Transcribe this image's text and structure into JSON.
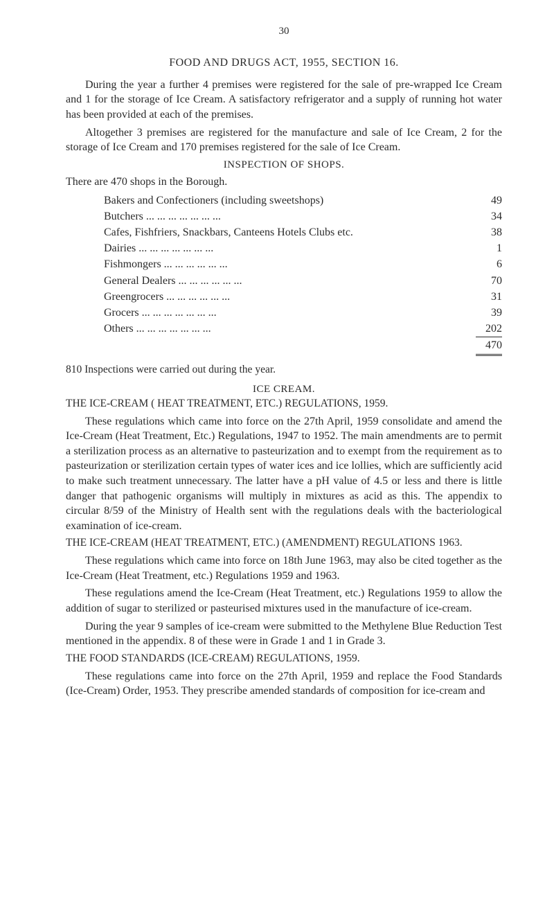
{
  "pageNumber": "30",
  "mainHeading": "FOOD AND DRUGS ACT, 1955, SECTION 16.",
  "para1": "During the year a further 4 premises were registered for the sale of pre-wrapped Ice Cream and 1 for the storage of Ice Cream. A satisfactory refrigerator and a supply of running hot water has been provided at each of the premises.",
  "para2": "Altogether 3 premises are registered for the manufacture and sale of Ice Cream, 2 for the storage of Ice Cream and 170 premises registered for the sale of Ice Cream.",
  "inspectionHeading": "INSPECTION OF SHOPS.",
  "inspectionIntro": "There are 470 shops in the Borough.",
  "shops": [
    {
      "label": "Bakers and Confectioners (including sweetshops)",
      "dots": "   ...",
      "val": "49"
    },
    {
      "label": "Butchers   ...      ...      ...      ...      ...      ...      ...",
      "dots": "",
      "val": "34"
    },
    {
      "label": "Cafes, Fishfriers, Snackbars, Canteens Hotels Clubs etc.",
      "dots": "",
      "val": "38"
    },
    {
      "label": "Dairies      ...      ...      ...      ...      ...      ...      ...",
      "dots": "",
      "val": "1"
    },
    {
      "label": "Fishmongers      ...      ...      ...      ...      ...      ...",
      "dots": "",
      "val": "6"
    },
    {
      "label": "General Dealers  ...      ...      ...      ...      ...      ...",
      "dots": "",
      "val": "70"
    },
    {
      "label": "Greengrocers      ...      ...      ...      ...      ...      ...",
      "dots": "",
      "val": "31"
    },
    {
      "label": "Grocers     ...      ...      ...      ...      ...      ...      ...",
      "dots": "",
      "val": "39"
    },
    {
      "label": "Others      ...      ...      ...      ...      ...      ...      ...",
      "dots": "",
      "val": "202"
    }
  ],
  "total": "470",
  "inspectCarried": "810 Inspections were carried out during the year.",
  "iceCreamHeading": "ICE CREAM.",
  "reg1Title": "THE ICE-CREAM ( HEAT TREATMENT, ETC.) REGULA­TIONS, 1959.",
  "reg1Para": "These regulations which came into force on the 27th April, 1959 consolidate and amend the Ice-Cream (Heat Treatment, Etc.) Regulations, 1947 to 1952. The main amendments are to permit a sterilization process as an alternative to pasteurization and to exempt from the requirement as to pasteurization or sterilization certain types of water ices and ice lollies, which are sufficiently acid to make such treatment unnecessary. The latter have a pH value of 4.5 or less and there is little danger that pathogenic organisms will multiply in mixtures as acid as this. The appendix to circular 8/59 of the Ministry of Health sent with the regulations deals with the bacteriological examination of ice-cream.",
  "reg2Title": "THE ICE-CREAM (HEAT TREATMENT, ETC.) (AMEND­MENT) REGULATIONS 1963.",
  "reg2Para1": "These regulations which came into force on 18th June 1963, may also be cited together as the Ice-Cream (Heat Treatment, etc.) Regulations 1959 and 1963.",
  "reg2Para2": "These regulations amend the Ice-Cream (Heat Treatment, etc.) Regulations 1959 to allow the addition of sugar to sterilized or pasteurised mixtures used in the manufacture of ice-cream.",
  "reg2Para3": "During the year 9 samples of ice-cream were submitted to the Methylene Blue Reduction Test mentioned in the appendix. 8 of these were in Grade 1 and 1 in Grade 3.",
  "reg3Title": "THE FOOD STANDARDS (ICE-CREAM) REGULATIONS, 1959.",
  "reg3Para": "These regulations came into force on the 27th April, 1959 and replace the Food Standards (Ice-Cream) Order, 1953. They prescribe amended standards of composition for ice-cream and"
}
